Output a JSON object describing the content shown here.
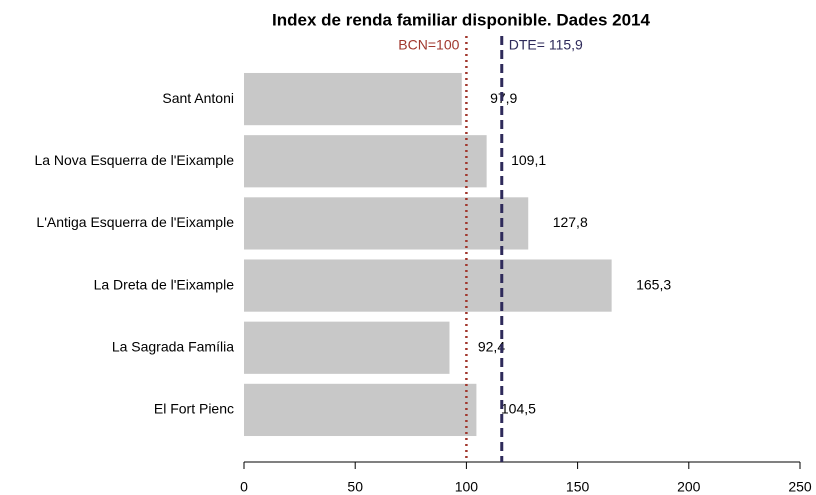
{
  "chart_data": {
    "type": "bar",
    "orientation": "horizontal",
    "title": "Index de renda familiar disponible. Dades 2014",
    "categories": [
      "Sant Antoni",
      "La Nova Esquerra de l'Eixample",
      "L'Antiga Esquerra de l'Eixample",
      "La Dreta de l'Eixample",
      "La Sagrada Família",
      "El Fort Pienc"
    ],
    "values": [
      97.9,
      109.1,
      127.8,
      165.3,
      92.4,
      104.5
    ],
    "value_labels": [
      "97,9",
      "109,1",
      "127,8",
      "165,3",
      "92,4",
      "104,5"
    ],
    "color": "#c8c8c8",
    "xlim": [
      0,
      250
    ],
    "xticks": [
      0,
      50,
      100,
      150,
      200,
      250
    ],
    "reference_lines": [
      {
        "value": 100,
        "label": "BCN=100",
        "color": "#a0372d",
        "style": "dotted"
      },
      {
        "value": 115.9,
        "label": "DTE= 115,9",
        "color": "#2e2a5a",
        "style": "dashed"
      }
    ]
  }
}
